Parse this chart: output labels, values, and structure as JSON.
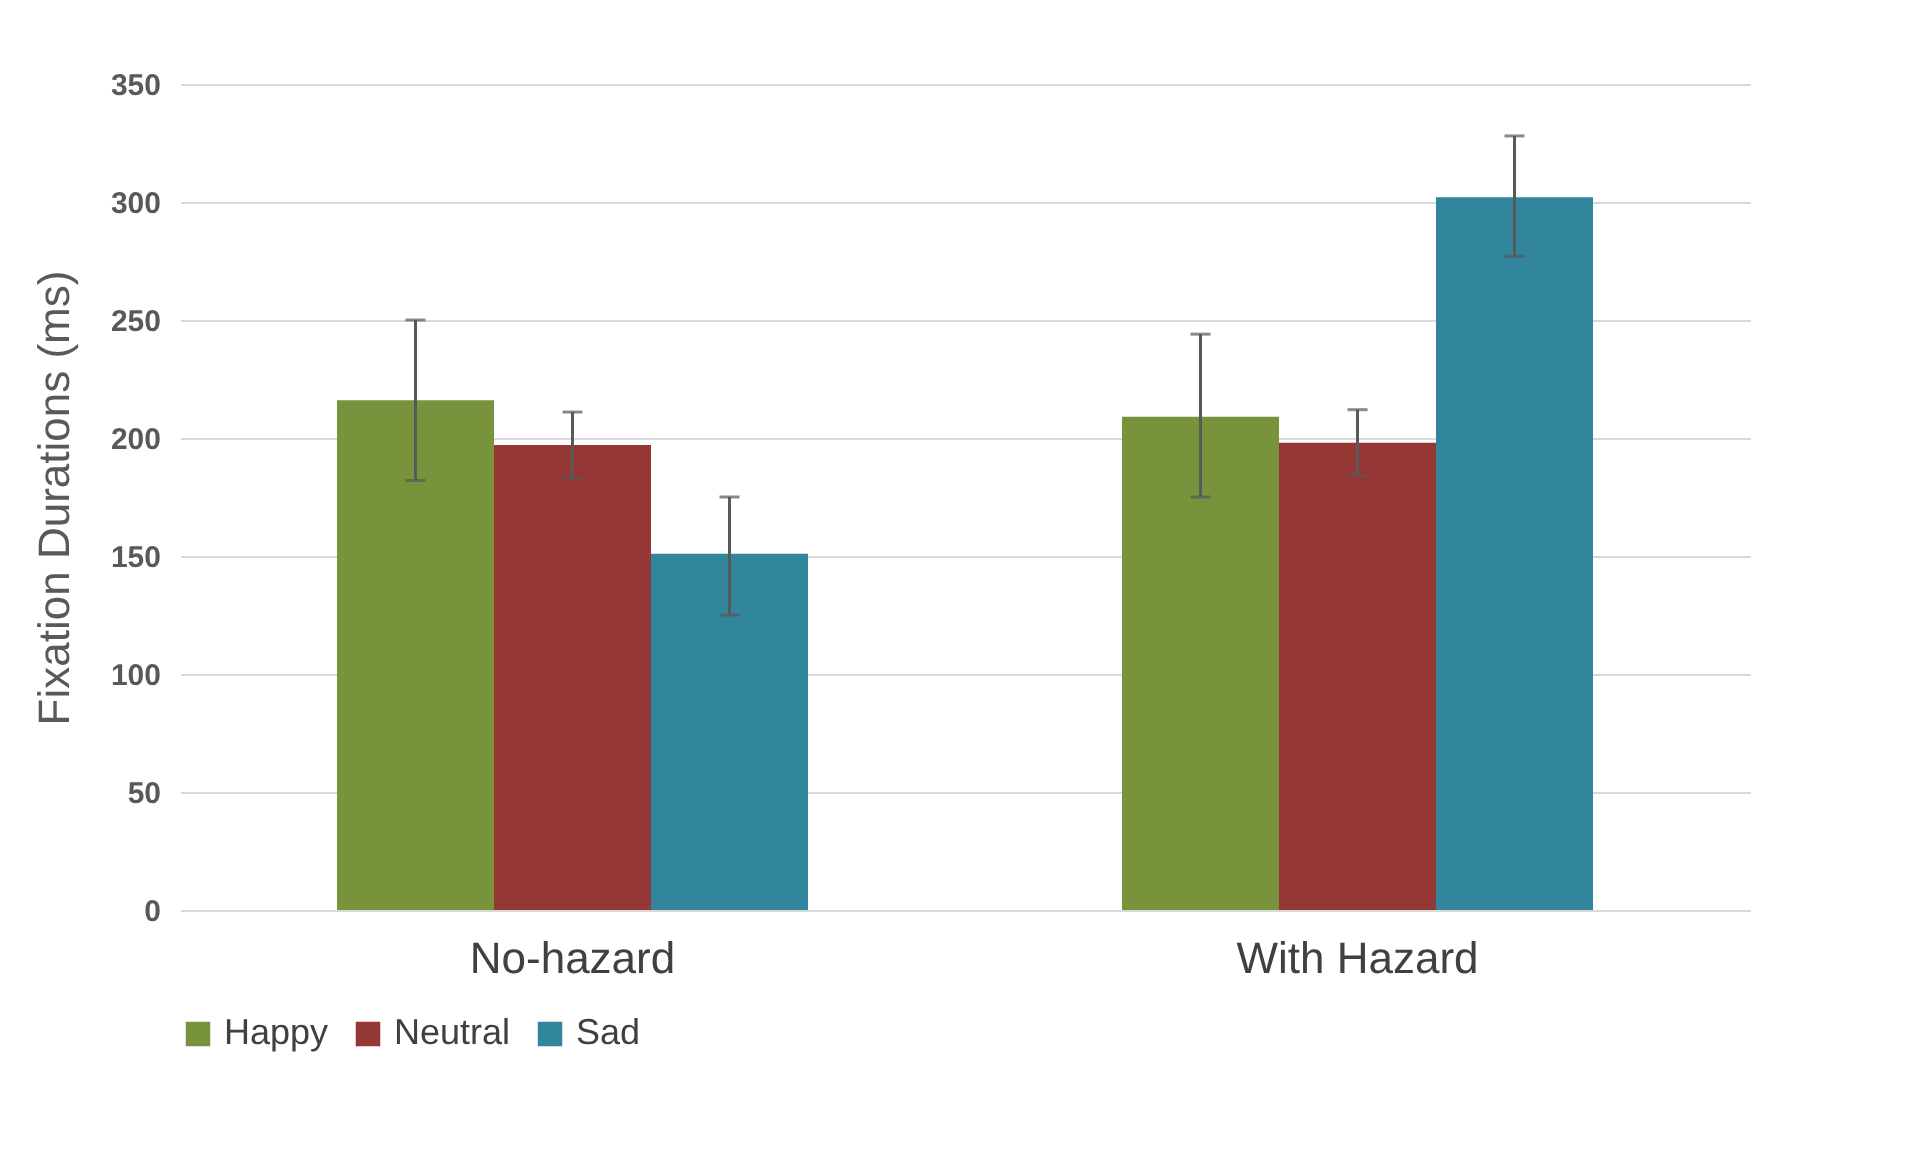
{
  "chart_data": {
    "type": "bar",
    "ylabel": "Fixation Durations (ms)",
    "categories": [
      "No-hazard",
      "With Hazard"
    ],
    "series": [
      {
        "name": "Happy",
        "color": "#77933c",
        "values": [
          216,
          209
        ],
        "errors": [
          [
            182,
            250
          ],
          [
            175,
            244
          ]
        ]
      },
      {
        "name": "Neutral",
        "color": "#953735",
        "values": [
          197,
          198
        ],
        "errors": [
          [
            183,
            211
          ],
          [
            184,
            212
          ]
        ]
      },
      {
        "name": "Sad",
        "color": "#31859c",
        "values": [
          151,
          302
        ],
        "errors": [
          [
            125,
            175
          ],
          [
            277,
            328
          ]
        ]
      }
    ],
    "ylim": [
      0,
      350
    ],
    "yticks": [
      0,
      50,
      100,
      150,
      200,
      250,
      300,
      350
    ],
    "grid": "y",
    "legend": "bottom"
  }
}
